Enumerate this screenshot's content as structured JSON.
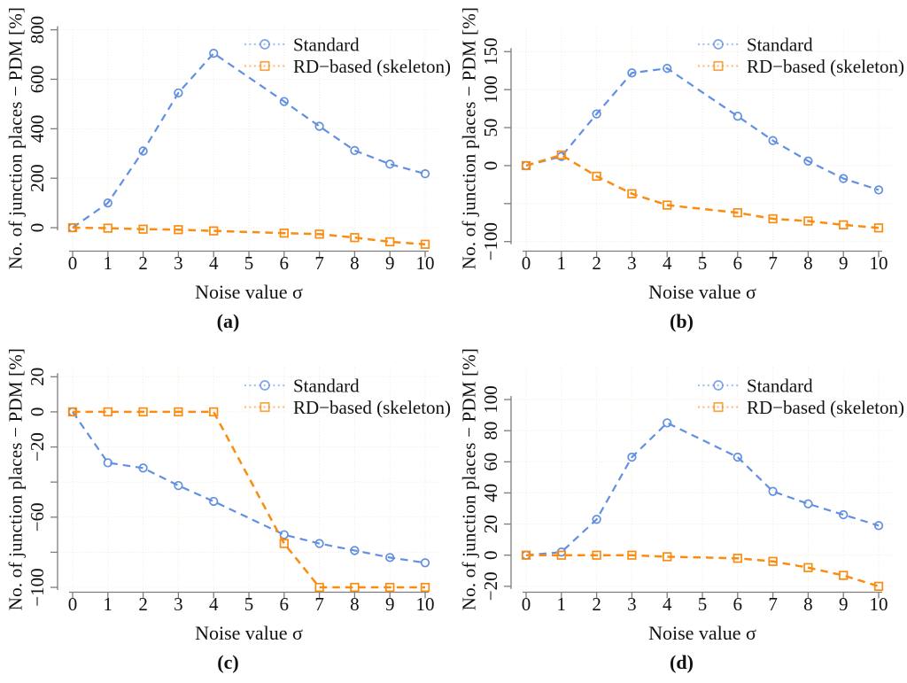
{
  "figure": {
    "xlabel": "Noise value σ",
    "ylabel": "No. of junction places − PDM [%]",
    "colors": {
      "standard": "#6190E2",
      "rd": "#FA8C11",
      "grid": "#F4EAD3",
      "axis": "#7D7D7D",
      "text": "#111111"
    },
    "legend": [
      {
        "series": "standard",
        "marker": "circle",
        "label": "Standard"
      },
      {
        "series": "rd",
        "marker": "square",
        "label": "RD−based (skeleton)"
      }
    ]
  },
  "chart_data": [
    {
      "id": "a",
      "type": "line",
      "caption": "(a)",
      "xlabel": "Noise value σ",
      "ylabel": "No. of junction places − PDM [%]",
      "x": [
        0,
        1,
        2,
        3,
        4,
        6,
        7,
        8,
        9,
        10
      ],
      "xticks": [
        0,
        1,
        2,
        3,
        4,
        5,
        6,
        7,
        8,
        9,
        10
      ],
      "xlim": [
        -0.4,
        10.4
      ],
      "ylim": [
        -93,
        813
      ],
      "yticks": [
        0,
        200,
        400,
        600,
        800
      ],
      "ytick_labels": [
        "0",
        "200",
        "400",
        "600",
        "800"
      ],
      "grid": true,
      "legend_position": "top-right",
      "series": [
        {
          "name": "Standard",
          "key": "standard",
          "marker": "circle",
          "values": [
            0,
            100,
            310,
            545,
            705,
            510,
            410,
            312,
            257,
            218
          ]
        },
        {
          "name": "RD−based (skeleton)",
          "key": "rd",
          "marker": "square",
          "values": [
            0,
            -2,
            -6,
            -8,
            -13,
            -22,
            -26,
            -40,
            -57,
            -67
          ]
        }
      ]
    },
    {
      "id": "b",
      "type": "line",
      "caption": "(b)",
      "xlabel": "Noise value σ",
      "ylabel": "No. of junction places − PDM [%]",
      "x": [
        0,
        1,
        2,
        3,
        4,
        6,
        7,
        8,
        9,
        10
      ],
      "xticks": [
        0,
        1,
        2,
        3,
        4,
        5,
        6,
        7,
        8,
        9,
        10
      ],
      "xlim": [
        -0.4,
        10.4
      ],
      "ylim": [
        -112,
        183
      ],
      "yticks": [
        -100,
        -50,
        0,
        50,
        100,
        150
      ],
      "ytick_labels": [
        "−100",
        "",
        "0",
        "50",
        "100",
        "150"
      ],
      "grid": true,
      "legend_position": "top-right",
      "series": [
        {
          "name": "Standard",
          "key": "standard",
          "marker": "circle",
          "values": [
            0,
            12,
            68,
            122,
            128,
            65,
            33,
            6,
            -17,
            -32
          ]
        },
        {
          "name": "RD−based (skeleton)",
          "key": "rd",
          "marker": "square",
          "values": [
            0,
            14,
            -14,
            -37,
            -52,
            -62,
            -70,
            -73,
            -78,
            -82
          ]
        }
      ]
    },
    {
      "id": "c",
      "type": "line",
      "caption": "(c)",
      "xlabel": "Noise value σ",
      "ylabel": "No. of junction places − PDM [%]",
      "x": [
        0,
        1,
        2,
        3,
        4,
        6,
        7,
        8,
        9,
        10
      ],
      "xticks": [
        0,
        1,
        2,
        3,
        4,
        5,
        6,
        7,
        8,
        9,
        10
      ],
      "xlim": [
        -0.4,
        10.4
      ],
      "ylim": [
        -102.5,
        25.2
      ],
      "yticks": [
        -100,
        -80,
        -60,
        -40,
        -20,
        0,
        20
      ],
      "ytick_labels": [
        "−100",
        "",
        "−60",
        "",
        "−20",
        "0",
        "20"
      ],
      "grid": true,
      "legend_position": "top-right",
      "series": [
        {
          "name": "Standard",
          "key": "standard",
          "marker": "circle",
          "values": [
            0,
            -29,
            -32,
            -42,
            -51,
            -70,
            -75,
            -79,
            -83,
            -86
          ]
        },
        {
          "name": "RD−based (skeleton)",
          "key": "rd",
          "marker": "square",
          "values": [
            0,
            0,
            0,
            0,
            0,
            -75,
            -100,
            -100,
            -100,
            -100
          ]
        }
      ]
    },
    {
      "id": "d",
      "type": "line",
      "caption": "(d)",
      "xlabel": "Noise value σ",
      "ylabel": "No. of junction places − PDM [%]",
      "x": [
        0,
        1,
        2,
        3,
        4,
        6,
        7,
        8,
        9,
        10
      ],
      "xticks": [
        0,
        1,
        2,
        3,
        4,
        5,
        6,
        7,
        8,
        9,
        10
      ],
      "xlim": [
        -0.4,
        10.4
      ],
      "ylim": [
        -23.5,
        120.5
      ],
      "yticks": [
        -20,
        0,
        20,
        40,
        60,
        80,
        100
      ],
      "ytick_labels": [
        "−20",
        "0",
        "20",
        "40",
        "60",
        "80",
        "100"
      ],
      "grid": true,
      "legend_position": "top-right",
      "series": [
        {
          "name": "Standard",
          "key": "standard",
          "marker": "circle",
          "values": [
            0,
            2,
            23,
            63,
            85,
            63,
            41,
            33,
            26,
            19
          ]
        },
        {
          "name": "RD−based (skeleton)",
          "key": "rd",
          "marker": "square",
          "values": [
            0,
            0,
            0,
            0,
            -1,
            -2,
            -4,
            -8,
            -13,
            -20
          ]
        }
      ]
    }
  ]
}
